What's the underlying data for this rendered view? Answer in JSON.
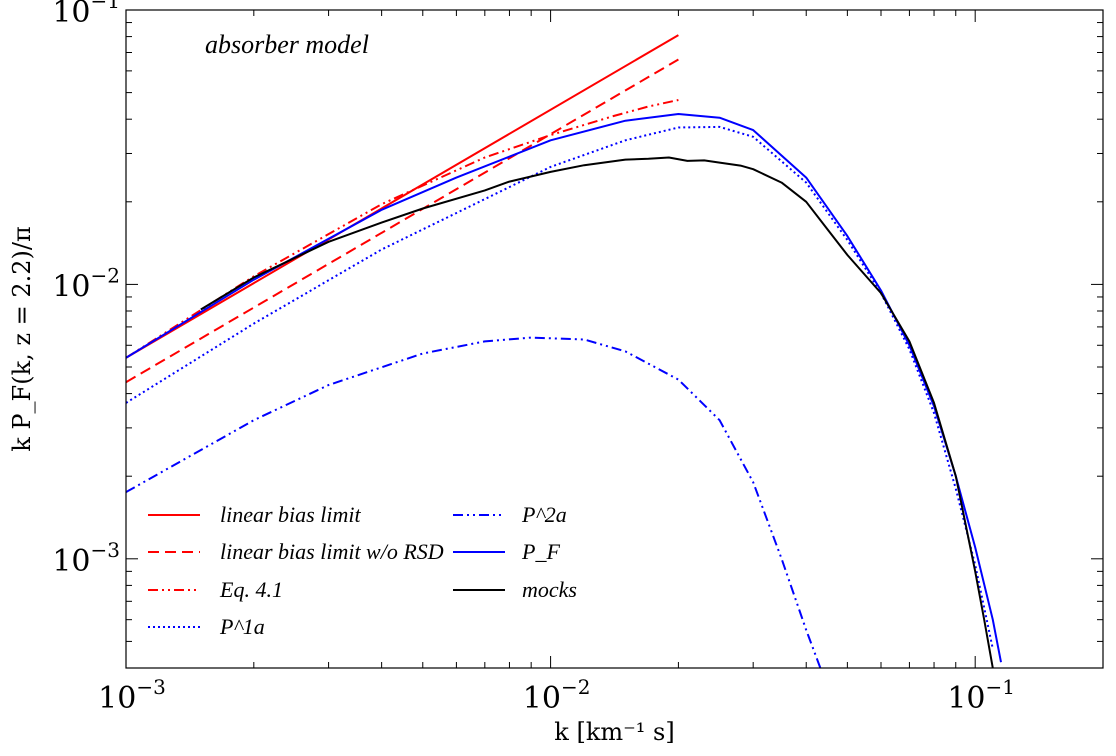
{
  "chart_data": {
    "type": "line",
    "xlabel": "k [km⁻¹ s]",
    "ylabel": "k P_F(k, z = 2.2)/π",
    "annotation": "absorber model",
    "x_scale": "log",
    "y_scale": "log",
    "xlim": [
      0.001,
      0.2
    ],
    "ylim": [
      0.0004,
      0.1
    ],
    "x_ticks": [
      {
        "value": 0.001,
        "base": "10",
        "exp": "−3"
      },
      {
        "value": 0.01,
        "base": "10",
        "exp": "−2"
      },
      {
        "value": 0.1,
        "base": "10",
        "exp": "−1"
      }
    ],
    "y_ticks": [
      {
        "value": 0.001,
        "base": "10",
        "exp": "−3"
      },
      {
        "value": 0.01,
        "base": "10",
        "exp": "−2"
      },
      {
        "value": 0.1,
        "base": "10",
        "exp": "−1"
      }
    ],
    "grid": false,
    "legend_position": "bottom-left",
    "series": [
      {
        "name": "linear bias limit",
        "color": "#ff0000",
        "dash": "solid",
        "x": [
          0.001,
          0.02
        ],
        "y": [
          0.0054,
          0.081
        ]
      },
      {
        "name": "linear bias limit w/o RSD",
        "color": "#ff0000",
        "dash": "dashed",
        "x": [
          0.001,
          0.02
        ],
        "y": [
          0.0044,
          0.066
        ]
      },
      {
        "name": "Eq. 4.1",
        "color": "#ff0000",
        "dash": "dashdotdot",
        "x": [
          0.001,
          0.002,
          0.004,
          0.007,
          0.01,
          0.014,
          0.017,
          0.02
        ],
        "y": [
          0.0054,
          0.0107,
          0.0196,
          0.029,
          0.035,
          0.041,
          0.0445,
          0.047
        ]
      },
      {
        "name": "P^1a",
        "color": "#0000ff",
        "dash": "dotted",
        "x": [
          0.001,
          0.002,
          0.004,
          0.006,
          0.01,
          0.015,
          0.02,
          0.025,
          0.03,
          0.04,
          0.05,
          0.06,
          0.07,
          0.08,
          0.09,
          0.1,
          0.11
        ],
        "y": [
          0.0037,
          0.0072,
          0.0134,
          0.0182,
          0.0268,
          0.0335,
          0.0373,
          0.0375,
          0.0345,
          0.0235,
          0.0145,
          0.0093,
          0.0058,
          0.0034,
          0.0018,
          0.00095,
          0.00047
        ]
      },
      {
        "name": "P^2a",
        "color": "#0000ff",
        "dash": "dashdotdot",
        "x": [
          0.001,
          0.002,
          0.003,
          0.005,
          0.007,
          0.009,
          0.012,
          0.015,
          0.02,
          0.025,
          0.03,
          0.035,
          0.04,
          0.044
        ],
        "y": [
          0.00175,
          0.0032,
          0.0043,
          0.0056,
          0.0062,
          0.0064,
          0.0063,
          0.0057,
          0.0045,
          0.0032,
          0.0019,
          0.001,
          0.00055,
          0.00037
        ]
      },
      {
        "name": "P_F",
        "color": "#0000ff",
        "dash": "solid",
        "x": [
          0.001,
          0.002,
          0.004,
          0.006,
          0.01,
          0.015,
          0.02,
          0.025,
          0.03,
          0.04,
          0.05,
          0.06,
          0.07,
          0.08,
          0.09,
          0.1,
          0.11,
          0.115
        ],
        "y": [
          0.0054,
          0.0104,
          0.0187,
          0.0245,
          0.0335,
          0.0395,
          0.0418,
          0.0405,
          0.0365,
          0.0245,
          0.015,
          0.0095,
          0.006,
          0.0036,
          0.002,
          0.0011,
          0.0006,
          0.00042
        ]
      },
      {
        "name": "mocks",
        "color": "#000000",
        "dash": "solid",
        "x": [
          0.0015,
          0.002,
          0.003,
          0.004,
          0.005,
          0.007,
          0.008,
          0.01,
          0.012,
          0.015,
          0.017,
          0.019,
          0.021,
          0.023,
          0.025,
          0.028,
          0.03,
          0.035,
          0.04,
          0.045,
          0.05,
          0.06,
          0.07,
          0.08,
          0.09,
          0.1,
          0.105,
          0.11
        ],
        "y": [
          0.0081,
          0.0106,
          0.0143,
          0.0168,
          0.0189,
          0.022,
          0.0237,
          0.0257,
          0.0272,
          0.0285,
          0.0287,
          0.029,
          0.0282,
          0.0283,
          0.0278,
          0.0271,
          0.0263,
          0.0235,
          0.02,
          0.0158,
          0.0128,
          0.0093,
          0.0062,
          0.0037,
          0.002,
          0.0009,
          0.0006,
          0.0004
        ]
      }
    ]
  }
}
